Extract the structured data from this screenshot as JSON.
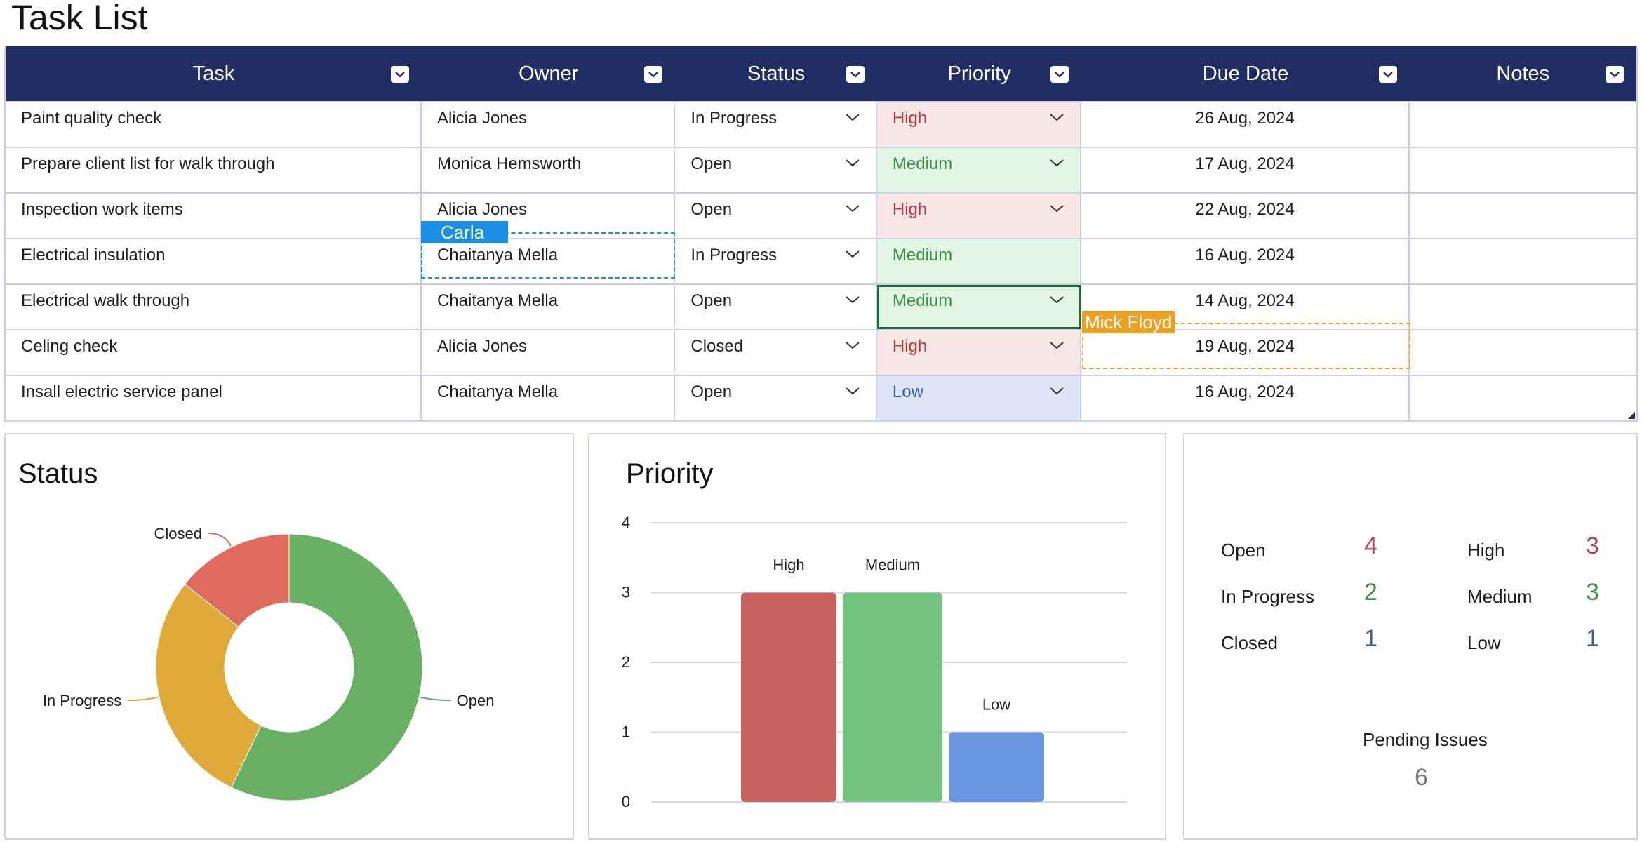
{
  "page": {
    "title": "Task List"
  },
  "table": {
    "columns": [
      "Task",
      "Owner",
      "Status",
      "Priority",
      "Due Date",
      "Notes"
    ],
    "rows": [
      {
        "task": "Paint quality check",
        "owner": "Alicia Jones",
        "status": "In Progress",
        "priority": "High",
        "due": "26 Aug, 2024",
        "notes": ""
      },
      {
        "task": "Prepare client list for walk through",
        "owner": "Monica Hemsworth",
        "status": "Open",
        "priority": "Medium",
        "due": "17 Aug, 2024",
        "notes": ""
      },
      {
        "task": "Inspection work items",
        "owner": "Alicia Jones",
        "status": "Open",
        "priority": "High",
        "due": "22 Aug, 2024",
        "notes": ""
      },
      {
        "task": "Electrical insulation",
        "owner": "Chaitanya Mella",
        "status": "In Progress",
        "priority": "Medium",
        "due": "16 Aug, 2024",
        "notes": ""
      },
      {
        "task": "Electrical walk through",
        "owner": "Chaitanya Mella",
        "status": "Open",
        "priority": "Medium",
        "due": "14 Aug, 2024",
        "notes": ""
      },
      {
        "task": "Celing check",
        "owner": "Alicia Jones",
        "status": "Closed",
        "priority": "High",
        "due": "19 Aug, 2024",
        "notes": ""
      },
      {
        "task": "Insall electric service panel",
        "owner": "Chaitanya Mella",
        "status": "Open",
        "priority": "Low",
        "due": "16 Aug, 2024",
        "notes": ""
      }
    ]
  },
  "collaborators": {
    "carla": {
      "name": "Carla",
      "color": "#1a8fe3"
    },
    "mick": {
      "name": "Mick Floyd",
      "color": "#f0a020"
    }
  },
  "colors": {
    "header": "#212e63",
    "high": "#c8625f",
    "medium": "#72c47e",
    "low": "#6a96e0",
    "open": "#68b063",
    "in_progress": "#dfaa3a",
    "closed": "#e06b5c"
  },
  "status_panel": {
    "title": "Status"
  },
  "priority_panel": {
    "title": "Priority"
  },
  "summary": {
    "status": [
      {
        "label": "Open",
        "value": "4",
        "color": "#b04545"
      },
      {
        "label": "In Progress",
        "value": "2",
        "color": "#3b8f46"
      },
      {
        "label": "Closed",
        "value": "1",
        "color": "#3a5ba0"
      }
    ],
    "priority": [
      {
        "label": "High",
        "value": "3",
        "color": "#b04545"
      },
      {
        "label": "Medium",
        "value": "3",
        "color": "#3b8f46"
      },
      {
        "label": "Low",
        "value": "1",
        "color": "#3a5ba0"
      }
    ],
    "pending_label": "Pending Issues",
    "pending_value": "6"
  },
  "chart_data": [
    {
      "type": "pie",
      "title": "Status",
      "categories": [
        "Open",
        "In Progress",
        "Closed"
      ],
      "values": [
        4,
        2,
        1
      ],
      "colors": [
        "#68b063",
        "#dfaa3a",
        "#e06b5c"
      ]
    },
    {
      "type": "bar",
      "title": "Priority",
      "categories": [
        "High",
        "Medium",
        "Low"
      ],
      "values": [
        3,
        3,
        1
      ],
      "colors": [
        "#c8625f",
        "#72c47e",
        "#6a96e0"
      ],
      "ylim": [
        0,
        4
      ],
      "yticks": [
        0,
        1,
        2,
        3,
        4
      ],
      "grid": true
    }
  ]
}
